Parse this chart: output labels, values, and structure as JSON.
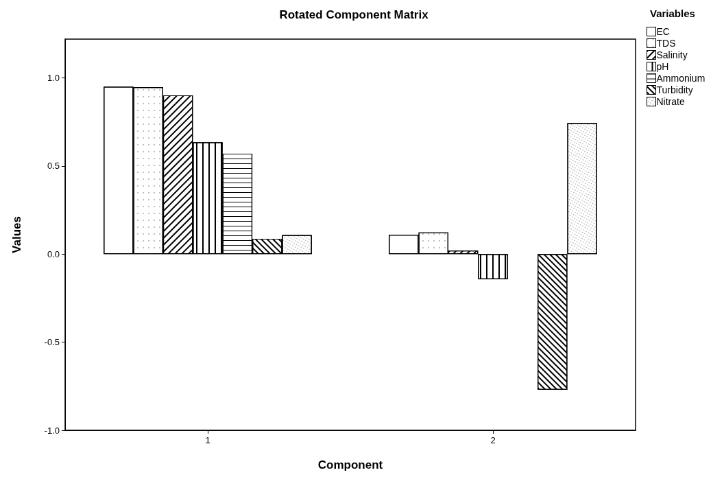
{
  "chart_data": {
    "type": "bar",
    "title": "Rotated Component Matrix",
    "xlabel": "Component",
    "ylabel": "Values",
    "legend_title": "Variables",
    "categories": [
      "1",
      "2"
    ],
    "series": [
      {
        "name": "EC",
        "color": "#ffffff",
        "values": [
          0.95,
          0.11
        ]
      },
      {
        "name": "TDS",
        "color": "#ffffff",
        "values": [
          0.947,
          0.123
        ]
      },
      {
        "name": "Salinity",
        "color": "#ffffff",
        "values": [
          0.901,
          0.02
        ]
      },
      {
        "name": "pH",
        "color": "#ffffff",
        "values": [
          0.635,
          -0.143
        ]
      },
      {
        "name": "Ammonium",
        "color": "#ffffff",
        "values": [
          0.57,
          0.0
        ]
      },
      {
        "name": "Turbidity",
        "color": "#ffffff",
        "values": [
          0.087,
          -0.77
        ]
      },
      {
        "name": "Nitrate",
        "color": "#ffffff",
        "values": [
          0.108,
          0.744
        ]
      }
    ],
    "ylim": [
      -1.0,
      1.22
    ],
    "yticks": [
      {
        "value": -1.0,
        "label": "-1.0"
      },
      {
        "value": -0.5,
        "label": "-0.5"
      },
      {
        "value": 0,
        "label": "0.0"
      },
      {
        "value": 0.5,
        "label": "0.5"
      },
      {
        "value": 1.0,
        "label": "1.0"
      }
    ],
    "grid": false,
    "legend": "top right"
  }
}
